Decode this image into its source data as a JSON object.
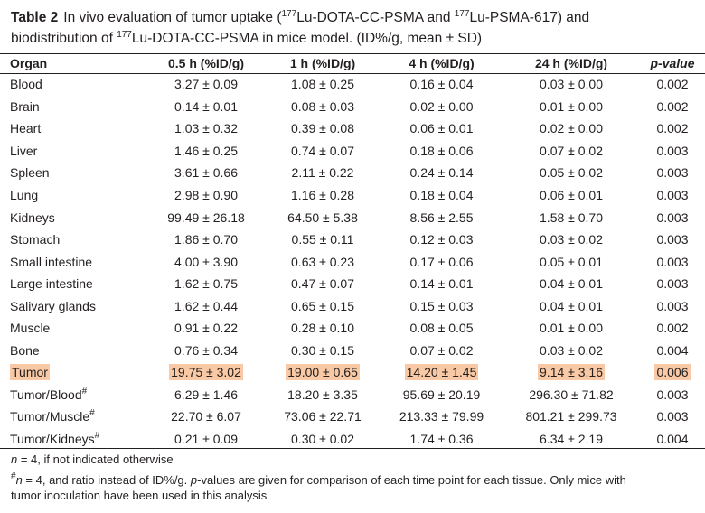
{
  "caption": {
    "label": "Table 2",
    "text_before_first_iso": "In vivo evaluation of tumor uptake (",
    "iso": "177",
    "tracer1": "Lu-DOTA-CC-PSMA and ",
    "tracer2": "Lu-PSMA-617) and",
    "line2_before_iso": "biodistribution of ",
    "line2_after_iso": "Lu-DOTA-CC-PSMA in mice model. (ID%/g, mean ± SD)"
  },
  "columns": [
    "Organ",
    "0.5 h (%ID/g)",
    "1 h (%ID/g)",
    "4 h (%ID/g)",
    "24 h (%ID/g)",
    "p-value"
  ],
  "rows": [
    {
      "organ": "Blood",
      "sup": "",
      "c1": "3.27 ± 0.09",
      "c2": "1.08 ± 0.25",
      "c3": "0.16 ± 0.04",
      "c4": "0.03 ± 0.00",
      "p": "0.002"
    },
    {
      "organ": "Brain",
      "sup": "",
      "c1": "0.14 ± 0.01",
      "c2": "0.08 ± 0.03",
      "c3": "0.02 ± 0.00",
      "c4": "0.01 ± 0.00",
      "p": "0.002"
    },
    {
      "organ": "Heart",
      "sup": "",
      "c1": "1.03 ± 0.32",
      "c2": "0.39 ± 0.08",
      "c3": "0.06 ± 0.01",
      "c4": "0.02 ± 0.00",
      "p": "0.002"
    },
    {
      "organ": "Liver",
      "sup": "",
      "c1": "1.46 ± 0.25",
      "c2": "0.74 ± 0.07",
      "c3": "0.18 ± 0.06",
      "c4": "0.07 ± 0.02",
      "p": "0.003"
    },
    {
      "organ": "Spleen",
      "sup": "",
      "c1": "3.61 ± 0.66",
      "c2": "2.11 ± 0.22",
      "c3": "0.24 ± 0.14",
      "c4": "0.05 ± 0.02",
      "p": "0.003"
    },
    {
      "organ": "Lung",
      "sup": "",
      "c1": "2.98 ± 0.90",
      "c2": "1.16 ± 0.28",
      "c3": "0.18 ± 0.04",
      "c4": "0.06 ± 0.01",
      "p": "0.003"
    },
    {
      "organ": "Kidneys",
      "sup": "",
      "c1": "99.49 ± 26.18",
      "c2": "64.50 ± 5.38",
      "c3": "8.56 ± 2.55",
      "c4": "1.58 ± 0.70",
      "p": "0.003"
    },
    {
      "organ": "Stomach",
      "sup": "",
      "c1": "1.86 ± 0.70",
      "c2": "0.55 ± 0.11",
      "c3": "0.12 ± 0.03",
      "c4": "0.03 ± 0.02",
      "p": "0.003"
    },
    {
      "organ": "Small intestine",
      "sup": "",
      "c1": "4.00 ± 3.90",
      "c2": "0.63 ± 0.23",
      "c3": "0.17 ± 0.06",
      "c4": "0.05 ± 0.01",
      "p": "0.003"
    },
    {
      "organ": "Large intestine",
      "sup": "",
      "c1": "1.62 ± 0.75",
      "c2": "0.47 ± 0.07",
      "c3": "0.14 ± 0.01",
      "c4": "0.04 ± 0.01",
      "p": "0.003"
    },
    {
      "organ": "Salivary glands",
      "sup": "",
      "c1": "1.62 ± 0.44",
      "c2": "0.65 ± 0.15",
      "c3": "0.15 ± 0.03",
      "c4": "0.04 ± 0.01",
      "p": "0.003"
    },
    {
      "organ": "Muscle",
      "sup": "",
      "c1": "0.91 ± 0.22",
      "c2": "0.28 ± 0.10",
      "c3": "0.08 ± 0.05",
      "c4": "0.01 ± 0.00",
      "p": "0.002"
    },
    {
      "organ": "Bone",
      "sup": "",
      "c1": "0.76 ± 0.34",
      "c2": "0.30 ± 0.15",
      "c3": "0.07 ± 0.02",
      "c4": "0.03 ± 0.02",
      "p": "0.004"
    },
    {
      "organ": "Tumor",
      "sup": "",
      "c1": "19.75 ± 3.02",
      "c2": "19.00 ± 0.65",
      "c3": "14.20 ± 1.45",
      "c4": "9.14 ± 3.16",
      "p": "0.006",
      "highlight": true
    },
    {
      "organ": "Tumor/Blood",
      "sup": "#",
      "c1": "6.29 ± 1.46",
      "c2": "18.20 ± 3.35",
      "c3": "95.69 ± 20.19",
      "c4": "296.30 ± 71.82",
      "p": "0.003"
    },
    {
      "organ": "Tumor/Muscle",
      "sup": "#",
      "c1": "22.70 ± 6.07",
      "c2": "73.06 ± 22.71",
      "c3": "213.33 ± 79.99",
      "c4": "801.21 ± 299.73",
      "p": "0.003"
    },
    {
      "organ": "Tumor/Kidneys",
      "sup": "#",
      "c1": "0.21 ± 0.09",
      "c2": "0.30 ± 0.02",
      "c3": "1.74 ± 0.36",
      "c4": "6.34 ± 2.19",
      "p": "0.004"
    }
  ],
  "highlight_color": "#f8c9a4",
  "footnote1": {
    "n": "n",
    "rest": " = 4, if not indicated otherwise"
  },
  "footnote2": {
    "mark": "#",
    "n": "n",
    "a": " = 4, and ratio instead of ID%/g. ",
    "p": "p",
    "b": "-values are given for comparison of each time point for each tissue. Only mice with",
    "line2": "tumor inoculation have been used in this analysis"
  }
}
